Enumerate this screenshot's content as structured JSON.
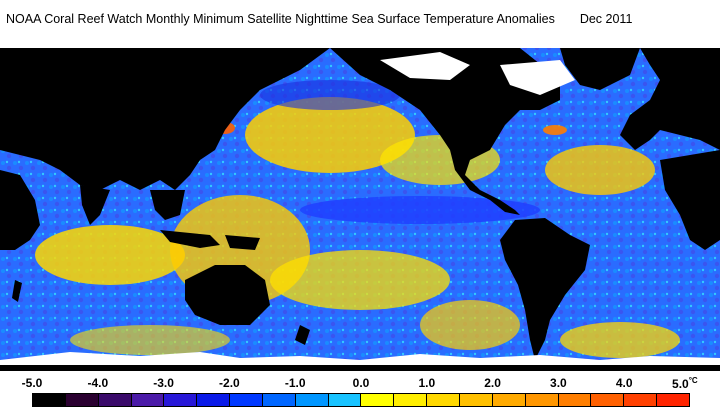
{
  "title": {
    "text": "NOAA Coral Reef Watch Monthly Minimum Satellite Nighttime Sea Surface Temperature Anomalies",
    "date": "Dec 2011"
  },
  "map": {
    "projection": "equirectangular",
    "ocean_palette": [
      "#1a3cff",
      "#2a6cff",
      "#19a8ff",
      "#33c9ff",
      "#fff200",
      "#ffd000",
      "#ffb000"
    ],
    "land_color": "#000000",
    "ice_color": "#ffffff"
  },
  "legend": {
    "ticks": [
      "-5.0",
      "-4.0",
      "-3.0",
      "-2.0",
      "-1.0",
      "0.0",
      "1.0",
      "2.0",
      "3.0",
      "4.0",
      "5.0"
    ],
    "unit": "°C",
    "colors": [
      "#000000",
      "#2a0030",
      "#3a0a6a",
      "#4b1aa8",
      "#2818d8",
      "#0a1ae8",
      "#0038ff",
      "#0066ff",
      "#0096ff",
      "#19c3ff",
      "#ffff00",
      "#ffee00",
      "#ffd800",
      "#ffc000",
      "#ffaa00",
      "#ff9600",
      "#ff7e00",
      "#ff6000",
      "#ff4000",
      "#ff2400"
    ]
  }
}
